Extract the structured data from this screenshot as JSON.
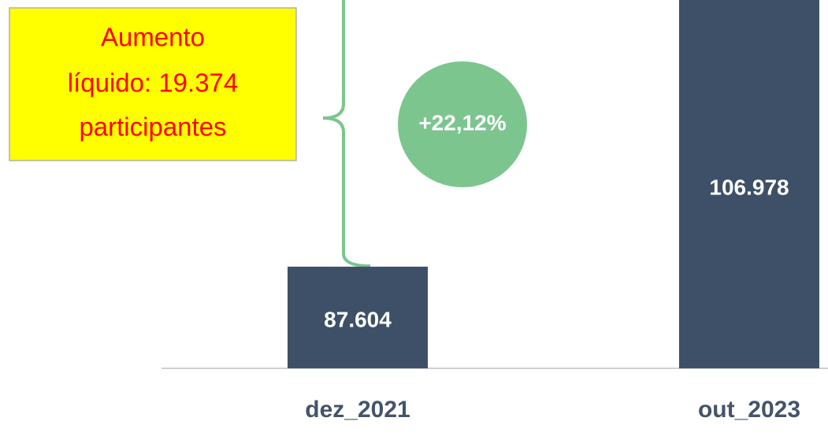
{
  "chart_data": {
    "type": "bar",
    "categories": [
      "dez_2021",
      "out_2023"
    ],
    "values": [
      87604,
      106978
    ],
    "value_labels": [
      "87.604",
      "106.978"
    ],
    "color": "#3e5068",
    "ylim": [
      80400,
      106500
    ],
    "annotations": {
      "increase_box": [
        "Aumento",
        "líquido: 19.374",
        "participantes"
      ],
      "percent_change": "+22,12%"
    }
  }
}
